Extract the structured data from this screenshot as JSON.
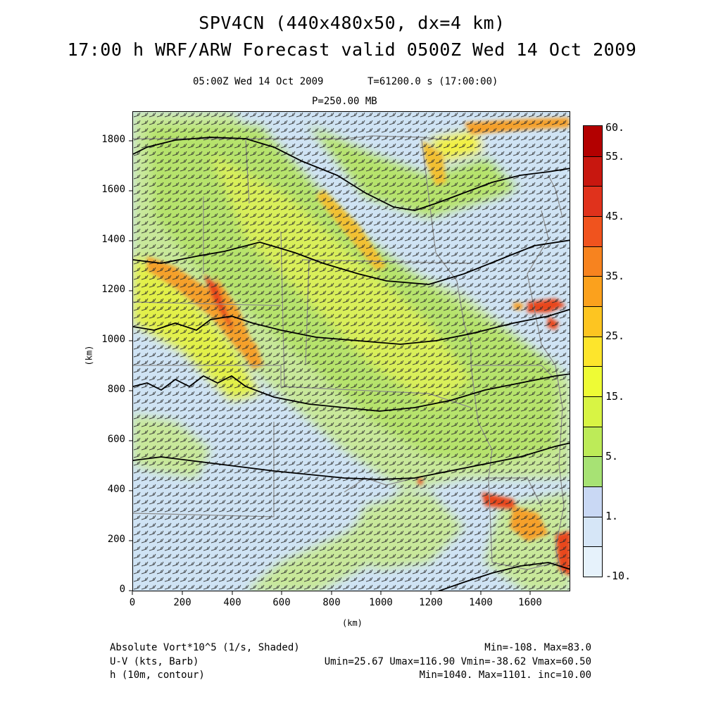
{
  "header": {
    "title_line1": "SPV4CN (440x480x50, dx=4 km)",
    "title_line2": "17:00 h WRF/ARW Forecast valid 0500Z Wed 14 Oct 2009",
    "valid_time": "05:00Z Wed 14 Oct 2009",
    "time_seconds": "T=61200.0 s (17:00:00)",
    "pressure_level": "P=250.00 MB"
  },
  "axes": {
    "xlabel": "(km)",
    "ylabel": "(km)",
    "xlim": [
      0,
      1760
    ],
    "ylim": [
      0,
      1920
    ],
    "xticks": [
      "0",
      "200",
      "400",
      "600",
      "800",
      "1000",
      "1200",
      "1400",
      "1600"
    ],
    "yticks": [
      "0",
      "200",
      "400",
      "600",
      "800",
      "1000",
      "1200",
      "1400",
      "1600",
      "1800"
    ]
  },
  "colorbar": {
    "labels": [
      "60.",
      "55.",
      "45.",
      "35.",
      "25.",
      "15.",
      "5.",
      "1.",
      "-10."
    ],
    "colors": [
      "#b30000",
      "#c8170f",
      "#e0321c",
      "#f0531e",
      "#f7831f",
      "#fba11d",
      "#fdc521",
      "#fde52c",
      "#eefb35",
      "#d8f444",
      "#bdeb58",
      "#a7e274",
      "#c9d8f4",
      "#d6e6f7",
      "#e6f2fb"
    ]
  },
  "map": {
    "accent_colors": {
      "light_blue": "#cfe3f4",
      "pale_green": "#c8e89a",
      "green": "#b6e36c",
      "yellow": "#f2f042",
      "orange": "#f5a02a",
      "red": "#e8461f"
    },
    "height_contours_dam": [
      "1040",
      "1050",
      "1060",
      "1070",
      "1080",
      "1090",
      "1100"
    ]
  },
  "footer": {
    "vort_label": "Absolute Vort*10^5 (1/s, Shaded)",
    "vort_stats": "Min=-108. Max=83.0",
    "wind_label": "U-V (kts, Barb)",
    "wind_stats": "Umin=25.67 Umax=116.90 Vmin=-38.62 Vmax=60.50",
    "height_label": "h (10m, contour)",
    "height_stats": "Min=1040. Max=1101. inc=10.00"
  }
}
